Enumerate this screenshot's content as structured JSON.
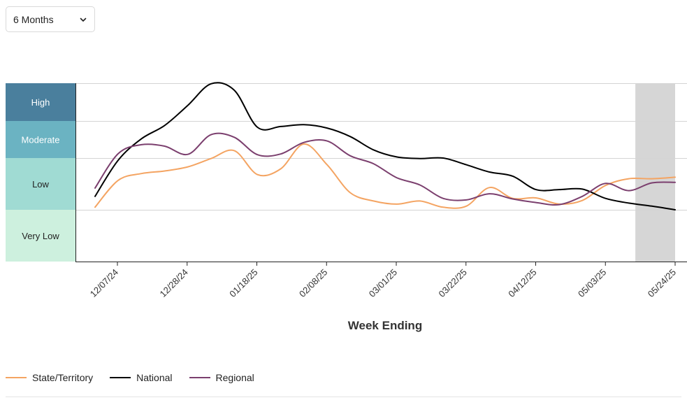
{
  "range_select": {
    "value": "6 Months",
    "icon": "chevron-down-icon"
  },
  "chart_data": {
    "type": "line",
    "xlabel": "Week Ending",
    "x_ticks": [
      "12/07/24",
      "12/28/24",
      "01/18/25",
      "02/08/25",
      "03/01/25",
      "03/22/25",
      "04/12/25",
      "05/03/25",
      "05/24/25"
    ],
    "x_range": [
      "2024-11-30",
      "2025-05-24"
    ],
    "y_levels": [
      {
        "label": "Very Low",
        "color": "#cdf0de"
      },
      {
        "label": "Low",
        "color": "#a0dbd3"
      },
      {
        "label": "Moderate",
        "color": "#6bb3c2"
      },
      {
        "label": "High",
        "color": "#4a7f9d"
      }
    ],
    "y_level_bounds": [
      0,
      1,
      2,
      3,
      3.7
    ],
    "shaded_region": {
      "x": [
        "2025-05-12",
        "2025-05-24"
      ],
      "color": "#d6d6d6"
    },
    "series": [
      {
        "name": "State/Territory",
        "color": "#f4a462",
        "points": [
          [
            "2024-11-30",
            1.05
          ],
          [
            "2024-12-07",
            1.57
          ],
          [
            "2024-12-14",
            1.7
          ],
          [
            "2024-12-21",
            1.75
          ],
          [
            "2024-12-28",
            1.83
          ],
          [
            "2025-01-04",
            1.99
          ],
          [
            "2025-01-11",
            2.2
          ],
          [
            "2025-01-18",
            1.68
          ],
          [
            "2025-01-25",
            1.79
          ],
          [
            "2025-02-01",
            2.38
          ],
          [
            "2025-02-08",
            1.87
          ],
          [
            "2025-02-15",
            1.33
          ],
          [
            "2025-02-22",
            1.17
          ],
          [
            "2025-03-01",
            1.11
          ],
          [
            "2025-03-08",
            1.17
          ],
          [
            "2025-03-15",
            1.05
          ],
          [
            "2025-03-22",
            1.07
          ],
          [
            "2025-03-29",
            1.43
          ],
          [
            "2025-04-05",
            1.22
          ],
          [
            "2025-04-12",
            1.23
          ],
          [
            "2025-04-19",
            1.11
          ],
          [
            "2025-04-26",
            1.18
          ],
          [
            "2025-05-03",
            1.47
          ],
          [
            "2025-05-10",
            1.6
          ],
          [
            "2025-05-17",
            1.6
          ],
          [
            "2025-05-24",
            1.63
          ]
        ]
      },
      {
        "name": "National",
        "color": "#000000",
        "points": [
          [
            "2024-11-30",
            1.26
          ],
          [
            "2024-12-07",
            1.96
          ],
          [
            "2024-12-14",
            2.52
          ],
          [
            "2024-12-21",
            2.88
          ],
          [
            "2024-12-28",
            3.29
          ],
          [
            "2025-01-04",
            3.69
          ],
          [
            "2025-01-11",
            3.57
          ],
          [
            "2025-01-18",
            2.83
          ],
          [
            "2025-01-25",
            2.85
          ],
          [
            "2025-02-01",
            2.9
          ],
          [
            "2025-02-08",
            2.81
          ],
          [
            "2025-02-15",
            2.58
          ],
          [
            "2025-02-22",
            2.22
          ],
          [
            "2025-03-01",
            2.03
          ],
          [
            "2025-03-08",
            1.99
          ],
          [
            "2025-03-15",
            2.0
          ],
          [
            "2025-03-22",
            1.87
          ],
          [
            "2025-03-29",
            1.73
          ],
          [
            "2025-04-05",
            1.65
          ],
          [
            "2025-04-12",
            1.39
          ],
          [
            "2025-04-19",
            1.39
          ],
          [
            "2025-04-26",
            1.4
          ],
          [
            "2025-05-03",
            1.22
          ],
          [
            "2025-05-10",
            1.13
          ],
          [
            "2025-05-17",
            1.07
          ],
          [
            "2025-05-24",
            1.0
          ]
        ]
      },
      {
        "name": "Regional",
        "color": "#7b3f6e",
        "points": [
          [
            "2024-11-30",
            1.42
          ],
          [
            "2024-12-07",
            2.12
          ],
          [
            "2024-12-14",
            2.36
          ],
          [
            "2024-12-21",
            2.32
          ],
          [
            "2024-12-28",
            2.1
          ],
          [
            "2025-01-04",
            2.63
          ],
          [
            "2025-01-11",
            2.56
          ],
          [
            "2025-01-18",
            2.09
          ],
          [
            "2025-01-25",
            2.11
          ],
          [
            "2025-02-01",
            2.42
          ],
          [
            "2025-02-08",
            2.46
          ],
          [
            "2025-02-15",
            2.06
          ],
          [
            "2025-02-22",
            1.89
          ],
          [
            "2025-03-01",
            1.62
          ],
          [
            "2025-03-08",
            1.48
          ],
          [
            "2025-03-15",
            1.22
          ],
          [
            "2025-03-22",
            1.19
          ],
          [
            "2025-03-29",
            1.31
          ],
          [
            "2025-04-05",
            1.21
          ],
          [
            "2025-04-12",
            1.14
          ],
          [
            "2025-04-19",
            1.1
          ],
          [
            "2025-04-26",
            1.26
          ],
          [
            "2025-05-03",
            1.51
          ],
          [
            "2025-05-10",
            1.37
          ],
          [
            "2025-05-17",
            1.52
          ],
          [
            "2025-05-24",
            1.53
          ]
        ]
      }
    ]
  }
}
